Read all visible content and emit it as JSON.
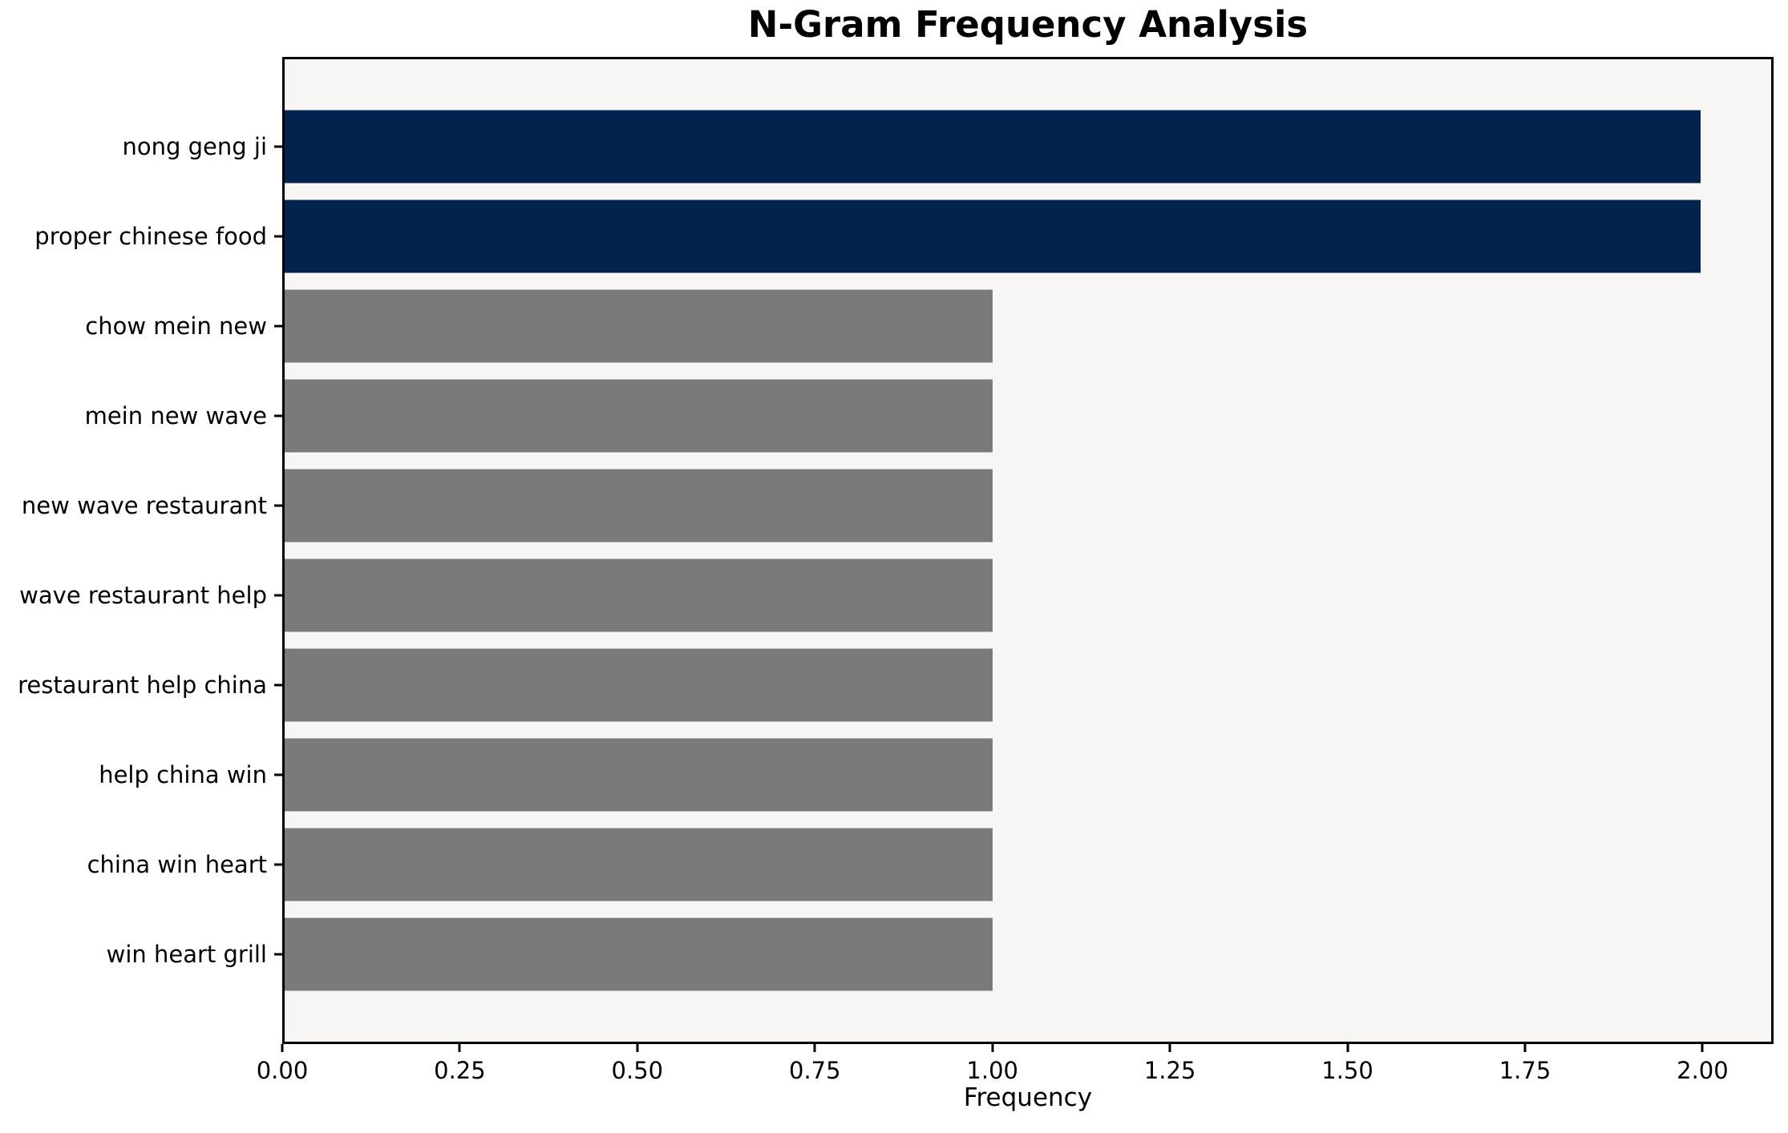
{
  "chart_data": {
    "type": "bar",
    "orientation": "horizontal",
    "title": "N-Gram Frequency Analysis",
    "xlabel": "Frequency",
    "ylabel": "",
    "categories": [
      "nong geng ji",
      "proper chinese food",
      "chow mein new",
      "mein new wave",
      "new wave restaurant",
      "wave restaurant help",
      "restaurant help china",
      "help china win",
      "china win heart",
      "win heart grill"
    ],
    "values": [
      2,
      2,
      1,
      1,
      1,
      1,
      1,
      1,
      1,
      1
    ],
    "bar_colors": [
      "#02234d",
      "#02234d",
      "#7b7a78",
      "#7b7a78",
      "#7b7a78",
      "#7b7a78",
      "#7b7a78",
      "#7b7a78",
      "#7b7a78",
      "#7b7a78"
    ],
    "xlim": [
      0,
      2.1
    ],
    "xticks": [
      0,
      0.25,
      0.5,
      0.75,
      1.0,
      1.25,
      1.5,
      1.75,
      2.0
    ],
    "xtick_labels": [
      "0.00",
      "0.25",
      "0.50",
      "0.75",
      "1.00",
      "1.25",
      "1.50",
      "1.75",
      "2.00"
    ],
    "grid": false,
    "legend": null,
    "colors": {
      "highlight_bar": "#02234d",
      "default_bar": "#7b7a78",
      "plot_background": "#f7f6f5",
      "figure_background": "#ffffff",
      "spine": "#000000",
      "text": "#000000"
    }
  }
}
